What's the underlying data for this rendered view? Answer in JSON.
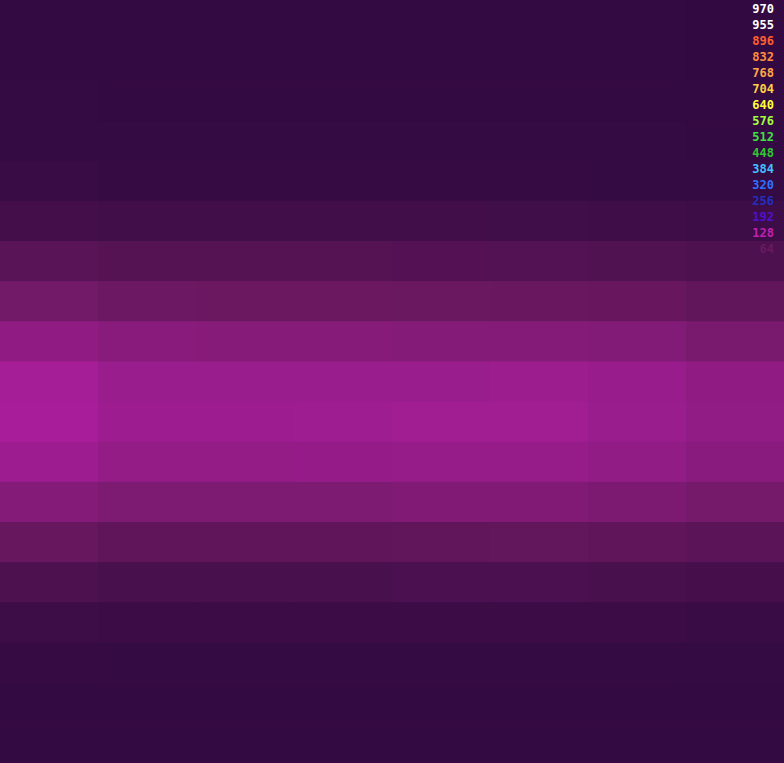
{
  "chart_data": {
    "type": "heatmap",
    "tick_labels": false,
    "cells": [
      [
        15,
        15,
        15,
        15,
        15,
        15,
        15,
        14
      ],
      [
        15,
        15,
        15,
        15,
        15,
        15,
        15,
        14
      ],
      [
        16,
        15,
        15,
        15,
        15,
        15,
        15,
        15
      ],
      [
        17,
        16,
        16,
        16,
        16,
        16,
        16,
        15
      ],
      [
        20,
        18,
        18,
        18,
        18,
        18,
        17,
        16
      ],
      [
        30,
        28,
        28,
        28,
        28,
        27,
        26,
        24
      ],
      [
        48,
        45,
        45,
        45,
        44,
        43,
        42,
        38
      ],
      [
        70,
        66,
        65,
        65,
        64,
        63,
        62,
        56
      ],
      [
        92,
        86,
        85,
        85,
        84,
        84,
        82,
        76
      ],
      [
        108,
        100,
        100,
        100,
        100,
        101,
        98,
        92
      ],
      [
        110,
        102,
        102,
        103,
        104,
        104,
        100,
        94
      ],
      [
        102,
        95,
        95,
        96,
        97,
        97,
        94,
        88
      ],
      [
        84,
        78,
        78,
        78,
        80,
        80,
        77,
        72
      ],
      [
        60,
        55,
        55,
        55,
        56,
        57,
        55,
        50
      ],
      [
        38,
        35,
        35,
        35,
        36,
        36,
        35,
        32
      ],
      [
        24,
        22,
        22,
        22,
        22,
        22,
        22,
        20
      ],
      [
        18,
        17,
        17,
        17,
        17,
        17,
        17,
        16
      ],
      [
        15,
        15,
        15,
        15,
        15,
        15,
        15,
        15
      ],
      [
        15,
        15,
        15,
        15,
        15,
        15,
        15,
        15
      ]
    ],
    "colorbar": {
      "range": [
        0,
        970
      ],
      "ticks": [
        970,
        955,
        896,
        832,
        768,
        704,
        640,
        576,
        512,
        448,
        384,
        320,
        256,
        192,
        128,
        64
      ],
      "colors": [
        "#ffffff",
        "#ffffff",
        "#ff6030",
        "#ff8c3c",
        "#ffa848",
        "#ffd040",
        "#ffff40",
        "#a0ff40",
        "#40e040",
        "#30c830",
        "#40c0ff",
        "#3070ff",
        "#2030c0",
        "#5010d0",
        "#c020b0",
        "#6a1860"
      ]
    }
  }
}
